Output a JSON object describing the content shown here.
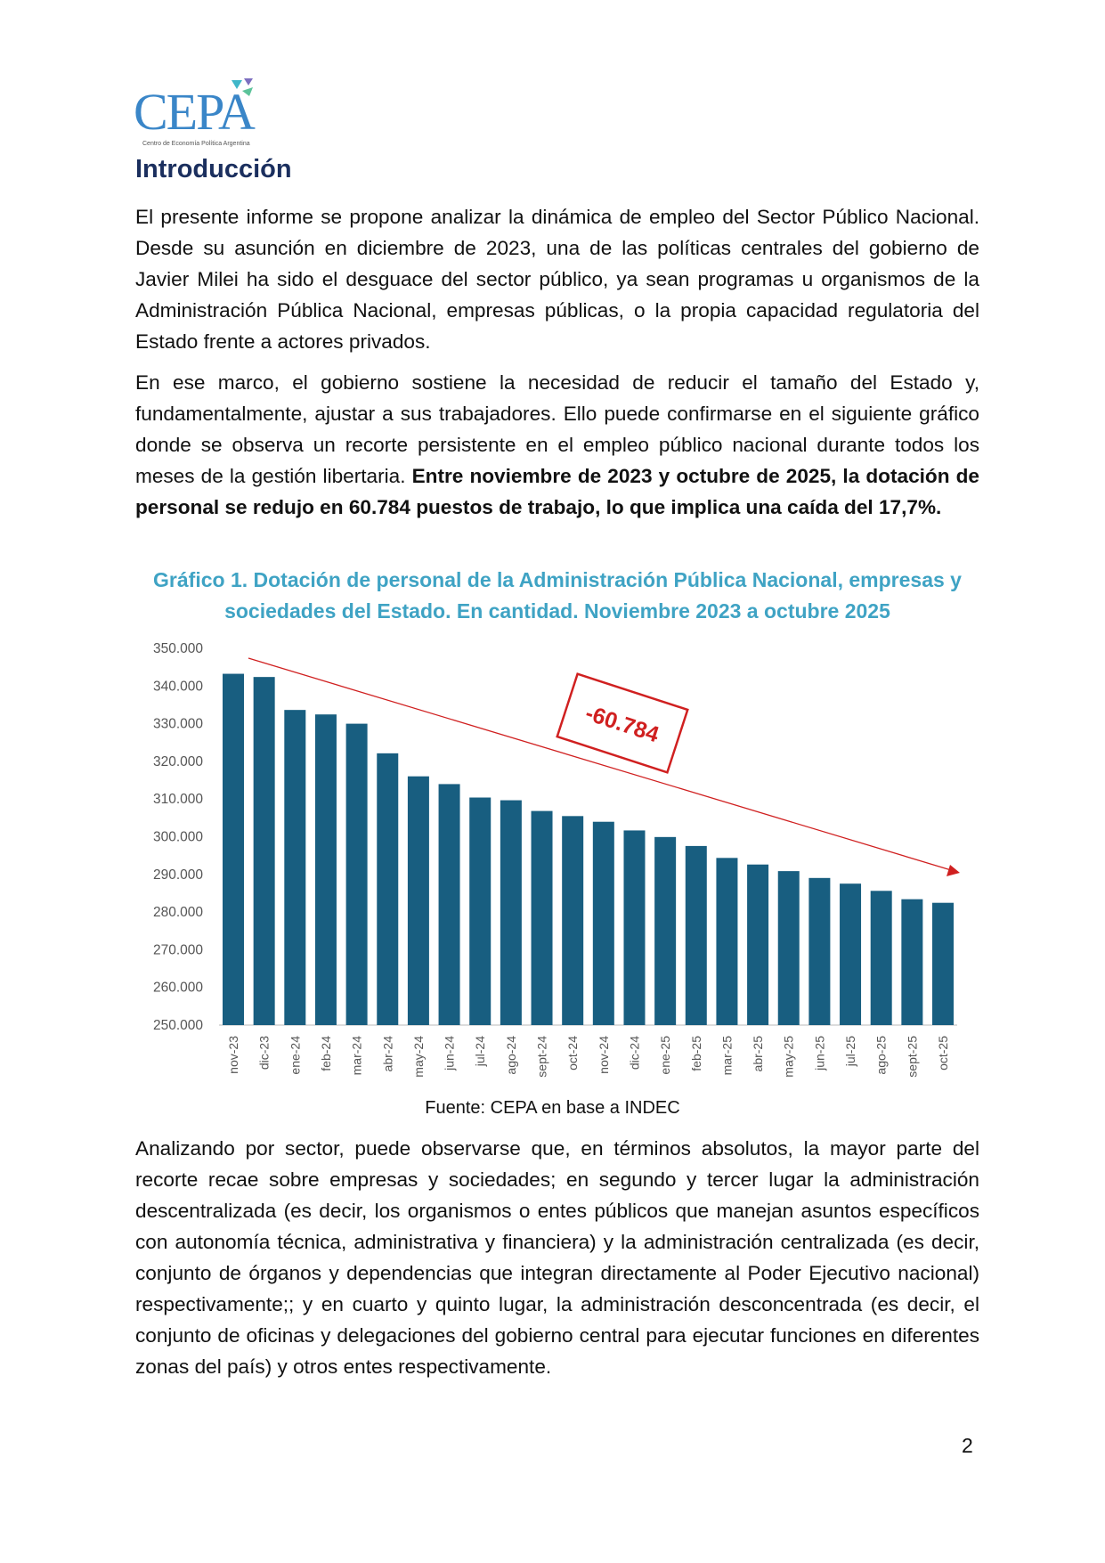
{
  "logo": {
    "name": "CEPA",
    "subtitle": "Centro de Economía Política Argentina"
  },
  "heading": "Introducción",
  "paragraphs": {
    "p1": "El presente informe se propone analizar la dinámica de empleo del Sector Público Nacional. Desde su asunción en diciembre de 2023, una de las políticas centrales del gobierno de Javier Milei ha sido el desguace del sector público, ya sean programas u organismos de la Administración Pública Nacional, empresas públicas, o la propia capacidad regulatoria del Estado frente a actores privados.",
    "p2_normal": "En ese marco, el gobierno sostiene la necesidad de reducir el tamaño del Estado y, fundamentalmente, ajustar a sus trabajadores. Ello puede confirmarse en el siguiente gráfico donde se observa un recorte persistente en el empleo público nacional durante todos los meses de la gestión libertaria. ",
    "p2_bold": "Entre noviembre de 2023 y octubre de 2025, la dotación de personal se redujo en 60.784 puestos de trabajo, lo que implica una caída del 17,7%.",
    "p3": "Analizando por sector, puede observarse que, en términos absolutos, la mayor parte del recorte recae sobre empresas y sociedades; en segundo y tercer lugar la administración descentralizada (es decir, los organismos o entes públicos que manejan asuntos específicos con autonomía técnica, administrativa y financiera) y la administración centralizada (es decir, conjunto de órganos y dependencias que integran directamente al Poder Ejecutivo nacional) respectivamente;; y en cuarto y quinto lugar, la administración desconcentrada (es decir, el conjunto de oficinas y delegaciones del gobierno central para ejecutar funciones en diferentes zonas del país)  y otros entes respectivamente."
  },
  "chart_title": "Gráfico 1. Dotación de personal de la Administración Pública Nacional, empresas y sociedades del Estado. En cantidad. Noviembre 2023 a octubre 2025",
  "source": "Fuente: CEPA en base a INDEC",
  "page_number": "2",
  "chart_data": {
    "type": "bar",
    "title": "Gráfico 1. Dotación de personal de la Administración Pública Nacional, empresas y sociedades del Estado. En cantidad. Noviembre 2023 a octubre 2025",
    "xlabel": "",
    "ylabel": "",
    "ylim": [
      250000,
      350000
    ],
    "yticks": [
      "250.000",
      "260.000",
      "270.000",
      "280.000",
      "290.000",
      "300.000",
      "310.000",
      "320.000",
      "330.000",
      "340.000",
      "350.000"
    ],
    "categories": [
      "nov-23",
      "dic-23",
      "ene-24",
      "feb-24",
      "mar-24",
      "abr-24",
      "may-24",
      "jun-24",
      "jul-24",
      "ago-24",
      "sept-24",
      "oct-24",
      "nov-24",
      "dic-24",
      "ene-25",
      "feb-25",
      "mar-25",
      "abr-25",
      "may-25",
      "jun-25",
      "jul-25",
      "ago-25",
      "sept-25",
      "oct-25"
    ],
    "values": [
      343250,
      342400,
      333650,
      332460,
      330000,
      322140,
      316030,
      313970,
      310400,
      309680,
      306830,
      305480,
      303970,
      301670,
      299920,
      297540,
      294370,
      292620,
      290870,
      289050,
      287540,
      285630,
      283410,
      282460
    ],
    "bar_color": "#185e80",
    "annotation": {
      "text": "-60.784",
      "color": "#d02020"
    }
  }
}
